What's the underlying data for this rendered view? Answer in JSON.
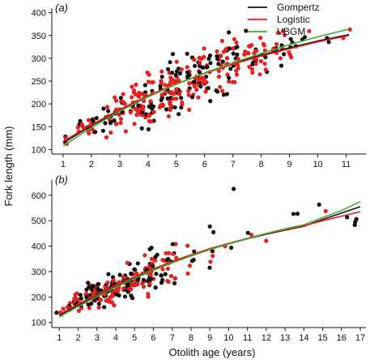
{
  "colors": {
    "gompertz": "#111111",
    "logistic": "#e8201f",
    "vbgm": "#3fae2a",
    "points_black": "#111111",
    "points_red": "#e8201f"
  },
  "ylabel": "Fork length (mm)",
  "xlabel": "Otolith age (years)",
  "legend": {
    "placement": "top-right",
    "items": [
      "Gompertz",
      "Logistic",
      "VBGM"
    ]
  },
  "chart_data": [
    {
      "type": "scatter",
      "panel_label": "a",
      "xlim": [
        0.6,
        11.7
      ],
      "ylim": [
        90,
        410
      ],
      "xticks": [
        1,
        2,
        3,
        4,
        5,
        6,
        7,
        8,
        9,
        10,
        11
      ],
      "yticks": [
        100,
        150,
        200,
        250,
        300,
        350,
        400
      ],
      "series": [
        {
          "name": "Gompertz",
          "color": "#111111",
          "x": [
            1,
            2,
            3,
            4,
            5,
            6,
            7,
            8,
            9,
            10,
            11.1
          ],
          "y": [
            114,
            152,
            186,
            216,
            243,
            267,
            288,
            307,
            323,
            338,
            352
          ]
        },
        {
          "name": "Logistic",
          "color": "#e8201f",
          "x": [
            1,
            2,
            3,
            4,
            5,
            6,
            7,
            8,
            9,
            10,
            11.1
          ],
          "y": [
            118,
            154,
            188,
            218,
            244,
            267,
            287,
            305,
            321,
            336,
            350
          ]
        },
        {
          "name": "VBGM",
          "color": "#3fae2a",
          "x": [
            1,
            2,
            3,
            4,
            5,
            6,
            7,
            8,
            9,
            10,
            11.1
          ],
          "y": [
            108,
            148,
            184,
            215,
            243,
            268,
            290,
            311,
            330,
            347,
            364
          ]
        }
      ],
      "points": [
        {
          "age": 1,
          "mean": 125,
          "sd": 8,
          "n": 4,
          "red_ratio": 0.7
        },
        {
          "age": 1.7,
          "mean": 150,
          "sd": 10,
          "n": 8,
          "red_ratio": 0.6
        },
        {
          "age": 2,
          "mean": 155,
          "sd": 14,
          "n": 14,
          "red_ratio": 0.6
        },
        {
          "age": 2.6,
          "mean": 170,
          "sd": 18,
          "n": 14,
          "red_ratio": 0.6
        },
        {
          "age": 3,
          "mean": 185,
          "sd": 20,
          "n": 28,
          "red_ratio": 0.7
        },
        {
          "age": 3.6,
          "mean": 195,
          "sd": 22,
          "n": 32,
          "red_ratio": 0.75
        },
        {
          "age": 4,
          "mean": 205,
          "sd": 25,
          "n": 34,
          "red_ratio": 0.65
        },
        {
          "age": 4.6,
          "mean": 220,
          "sd": 26,
          "n": 34,
          "red_ratio": 0.6
        },
        {
          "age": 5,
          "mean": 235,
          "sd": 28,
          "n": 36,
          "red_ratio": 0.55
        },
        {
          "age": 5.6,
          "mean": 255,
          "sd": 28,
          "n": 30,
          "red_ratio": 0.6
        },
        {
          "age": 6,
          "mean": 265,
          "sd": 28,
          "n": 30,
          "red_ratio": 0.6
        },
        {
          "age": 6.6,
          "mean": 280,
          "sd": 28,
          "n": 26,
          "red_ratio": 0.6
        },
        {
          "age": 7,
          "mean": 290,
          "sd": 25,
          "n": 24,
          "red_ratio": 0.55
        },
        {
          "age": 7.6,
          "mean": 300,
          "sd": 25,
          "n": 18,
          "red_ratio": 0.6
        },
        {
          "age": 8,
          "mean": 305,
          "sd": 22,
          "n": 14,
          "red_ratio": 0.7
        },
        {
          "age": 8.6,
          "mean": 320,
          "sd": 22,
          "n": 12,
          "red_ratio": 0.65
        },
        {
          "age": 9,
          "mean": 330,
          "sd": 18,
          "n": 8,
          "red_ratio": 0.7
        },
        {
          "age": 9.6,
          "mean": 345,
          "sd": 10,
          "n": 3,
          "red_ratio": 0.5
        },
        {
          "age": 10.4,
          "mean": 345,
          "sd": 8,
          "n": 2,
          "red_ratio": 0.5
        },
        {
          "age": 11,
          "mean": 352,
          "sd": 8,
          "n": 2,
          "red_ratio": 0.5
        }
      ]
    },
    {
      "type": "scatter",
      "panel_label": "b",
      "xlim": [
        0.6,
        17.3
      ],
      "ylim": [
        80,
        660
      ],
      "xticks": [
        1,
        2,
        3,
        4,
        5,
        6,
        7,
        8,
        9,
        10,
        11,
        12,
        13,
        14,
        15,
        16,
        17
      ],
      "yticks": [
        100,
        200,
        300,
        400,
        500,
        600
      ],
      "series": [
        {
          "name": "Gompertz",
          "color": "#111111",
          "x": [
            1,
            2,
            3,
            4,
            5,
            6,
            7,
            8,
            9,
            10,
            11,
            12,
            13,
            14,
            15,
            16,
            17
          ],
          "y": [
            128,
            168,
            207,
            243,
            277,
            308,
            337,
            363,
            387,
            409,
            429,
            447,
            463,
            478,
            505,
            530,
            555
          ]
        },
        {
          "name": "Logistic",
          "color": "#e8201f",
          "x": [
            1,
            2,
            3,
            4,
            5,
            6,
            7,
            8,
            9,
            10,
            11,
            12,
            13,
            14,
            15,
            16,
            17
          ],
          "y": [
            132,
            172,
            210,
            246,
            280,
            311,
            340,
            366,
            390,
            411,
            431,
            449,
            465,
            480,
            500,
            518,
            535
          ]
        },
        {
          "name": "VBGM",
          "color": "#3fae2a",
          "x": [
            1,
            2,
            3,
            4,
            5,
            6,
            7,
            8,
            9,
            10,
            11,
            12,
            13,
            14,
            15,
            16,
            17
          ],
          "y": [
            122,
            163,
            202,
            239,
            273,
            305,
            334,
            361,
            386,
            409,
            430,
            450,
            468,
            484,
            512,
            540,
            575
          ]
        }
      ],
      "points": [
        {
          "age": 1,
          "mean": 140,
          "sd": 10,
          "n": 4,
          "red_ratio": 0.4
        },
        {
          "age": 1.6,
          "mean": 160,
          "sd": 15,
          "n": 8,
          "red_ratio": 0.5
        },
        {
          "age": 2,
          "mean": 180,
          "sd": 22,
          "n": 18,
          "red_ratio": 0.45
        },
        {
          "age": 2.6,
          "mean": 205,
          "sd": 25,
          "n": 22,
          "red_ratio": 0.5
        },
        {
          "age": 3,
          "mean": 210,
          "sd": 28,
          "n": 26,
          "red_ratio": 0.55
        },
        {
          "age": 3.6,
          "mean": 220,
          "sd": 28,
          "n": 28,
          "red_ratio": 0.55
        },
        {
          "age": 4,
          "mean": 230,
          "sd": 30,
          "n": 30,
          "red_ratio": 0.55
        },
        {
          "age": 4.6,
          "mean": 245,
          "sd": 32,
          "n": 26,
          "red_ratio": 0.5
        },
        {
          "age": 5,
          "mean": 260,
          "sd": 38,
          "n": 24,
          "red_ratio": 0.5
        },
        {
          "age": 5.6,
          "mean": 285,
          "sd": 40,
          "n": 20,
          "red_ratio": 0.45
        },
        {
          "age": 6,
          "mean": 300,
          "sd": 45,
          "n": 18,
          "red_ratio": 0.45
        },
        {
          "age": 6.6,
          "mean": 320,
          "sd": 45,
          "n": 14,
          "red_ratio": 0.5
        },
        {
          "age": 7,
          "mean": 330,
          "sd": 50,
          "n": 12,
          "red_ratio": 0.4
        },
        {
          "age": 8,
          "mean": 360,
          "sd": 50,
          "n": 6,
          "red_ratio": 0.35
        },
        {
          "age": 9,
          "mean": 400,
          "sd": 60,
          "n": 6,
          "red_ratio": 0.35
        },
        {
          "age": 10,
          "mean": 430,
          "sd": 40,
          "n": 3,
          "red_ratio": 0.3
        },
        {
          "age": 10.1,
          "mean": 625,
          "sd": 0,
          "n": 1,
          "red_ratio": 0
        },
        {
          "age": 11,
          "mean": 445,
          "sd": 10,
          "n": 2,
          "red_ratio": 0.5
        },
        {
          "age": 12.2,
          "mean": 420,
          "sd": 5,
          "n": 1,
          "red_ratio": 1
        },
        {
          "age": 13.5,
          "mean": 525,
          "sd": 10,
          "n": 2,
          "red_ratio": 0.5
        },
        {
          "age": 15,
          "mean": 555,
          "sd": 10,
          "n": 2,
          "red_ratio": 0.5
        },
        {
          "age": 16.3,
          "mean": 520,
          "sd": 5,
          "n": 1,
          "red_ratio": 0
        },
        {
          "age": 16.9,
          "mean": 495,
          "sd": 15,
          "n": 3,
          "red_ratio": 0.5
        }
      ]
    }
  ]
}
